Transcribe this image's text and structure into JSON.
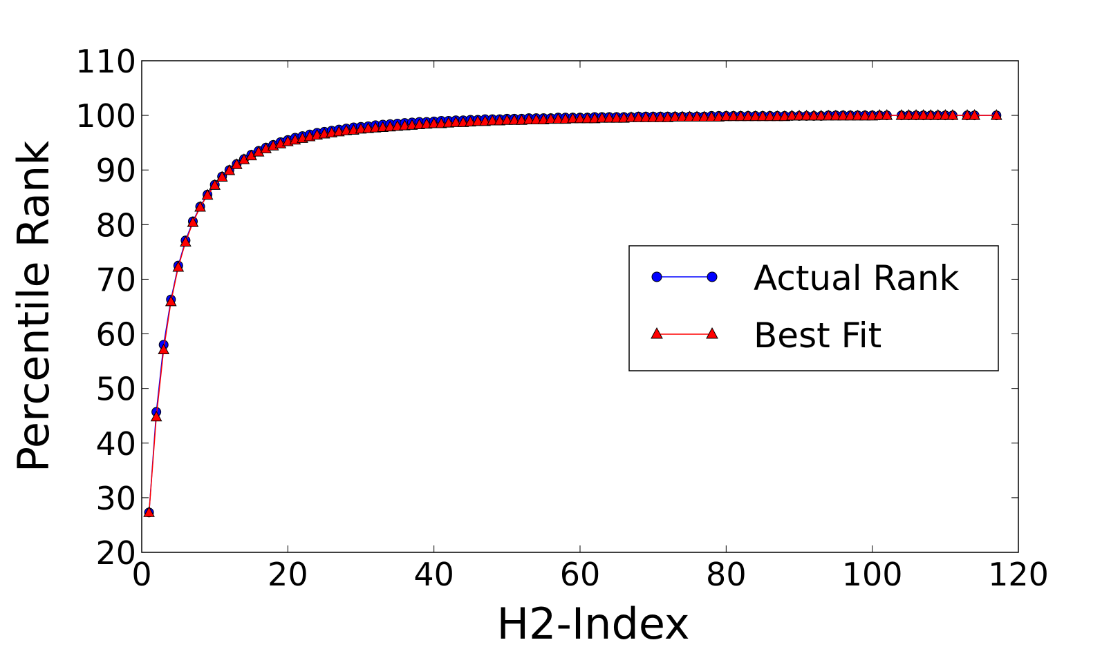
{
  "chart_data": {
    "type": "line",
    "title": "",
    "xlabel": "H2-Index",
    "ylabel": "Percentile Rank",
    "xlim": [
      0,
      120
    ],
    "ylim": [
      20,
      110
    ],
    "xticks": [
      "0",
      "20",
      "40",
      "60",
      "80",
      "100",
      "120"
    ],
    "yticks": [
      "20",
      "30",
      "40",
      "50",
      "60",
      "70",
      "80",
      "90",
      "100",
      "110"
    ],
    "grid": false,
    "legend_position": "center-right",
    "series": [
      {
        "name": "Actual Rank",
        "color": "#0000ff",
        "marker": "circle",
        "x": [
          1,
          2,
          3,
          4,
          5,
          6,
          7,
          8,
          9,
          10,
          11,
          12,
          13,
          14,
          15,
          16,
          17,
          18,
          19,
          20,
          21,
          22,
          23,
          24,
          25,
          26,
          27,
          28,
          29,
          30,
          31,
          32,
          33,
          34,
          35,
          36,
          37,
          38,
          39,
          40,
          41,
          42,
          43,
          44,
          45,
          46,
          47,
          48,
          49,
          50,
          51,
          52,
          53,
          54,
          55,
          56,
          57,
          58,
          59,
          60,
          61,
          62,
          63,
          64,
          65,
          66,
          67,
          68,
          69,
          70,
          71,
          72,
          73,
          74,
          75,
          76,
          77,
          78,
          79,
          80,
          81,
          82,
          83,
          84,
          85,
          86,
          87,
          88,
          89,
          90,
          91,
          92,
          93,
          94,
          95,
          96,
          97,
          98,
          99,
          100,
          101,
          102,
          104,
          105,
          106,
          107,
          108,
          109,
          110,
          111,
          113,
          114,
          117
        ],
        "y": [
          27.3,
          45.7,
          58.0,
          66.3,
          72.5,
          77.1,
          80.6,
          83.3,
          85.5,
          87.3,
          88.8,
          90.0,
          91.1,
          92.0,
          92.8,
          93.5,
          94.1,
          94.6,
          95.1,
          95.5,
          95.9,
          96.2,
          96.5,
          96.8,
          97.0,
          97.2,
          97.4,
          97.6,
          97.8,
          97.9,
          98.0,
          98.2,
          98.3,
          98.4,
          98.5,
          98.6,
          98.7,
          98.8,
          98.8,
          98.9,
          99.0,
          99.0,
          99.1,
          99.1,
          99.2,
          99.2,
          99.3,
          99.3,
          99.3,
          99.4,
          99.4,
          99.4,
          99.5,
          99.5,
          99.5,
          99.5,
          99.6,
          99.6,
          99.6,
          99.6,
          99.6,
          99.7,
          99.7,
          99.7,
          99.7,
          99.7,
          99.7,
          99.8,
          99.8,
          99.8,
          99.8,
          99.8,
          99.8,
          99.8,
          99.8,
          99.8,
          99.8,
          99.9,
          99.9,
          99.9,
          99.9,
          99.9,
          99.9,
          99.9,
          99.9,
          99.9,
          99.9,
          99.9,
          99.9,
          99.9,
          99.9,
          99.9,
          99.9,
          100.0,
          100.0,
          100.0,
          100.0,
          100.0,
          100.0,
          100.0,
          100.0,
          100.0,
          100.0,
          100.0,
          100.0,
          100.0,
          100.0,
          100.0,
          100.0,
          100.0,
          100.0,
          100.0,
          100.0
        ]
      },
      {
        "name": "Best Fit",
        "color": "#ff0000",
        "marker": "triangle",
        "x": [
          1,
          2,
          3,
          4,
          5,
          6,
          7,
          8,
          9,
          10,
          11,
          12,
          13,
          14,
          15,
          16,
          17,
          18,
          19,
          20,
          21,
          22,
          23,
          24,
          25,
          26,
          27,
          28,
          29,
          30,
          31,
          32,
          33,
          34,
          35,
          36,
          37,
          38,
          39,
          40,
          41,
          42,
          43,
          44,
          45,
          46,
          47,
          48,
          49,
          50,
          51,
          52,
          53,
          54,
          55,
          56,
          57,
          58,
          59,
          60,
          61,
          62,
          63,
          64,
          65,
          66,
          67,
          68,
          69,
          70,
          71,
          72,
          73,
          74,
          75,
          76,
          77,
          78,
          79,
          80,
          81,
          82,
          83,
          84,
          85,
          86,
          87,
          88,
          89,
          90,
          91,
          92,
          93,
          94,
          95,
          96,
          97,
          98,
          99,
          100,
          101,
          102,
          104,
          105,
          106,
          107,
          108,
          109,
          110,
          111,
          113,
          114,
          117
        ],
        "y": [
          27.3,
          44.8,
          57.1,
          65.9,
          72.2,
          76.8,
          80.4,
          83.2,
          85.4,
          87.2,
          88.7,
          89.9,
          91.0,
          91.9,
          92.6,
          93.3,
          93.9,
          94.4,
          94.8,
          95.2,
          95.5,
          95.8,
          96.1,
          96.4,
          96.6,
          96.8,
          97.0,
          97.2,
          97.3,
          97.5,
          97.6,
          97.7,
          97.8,
          97.9,
          98.0,
          98.1,
          98.2,
          98.3,
          98.4,
          98.5,
          98.5,
          98.6,
          98.7,
          98.7,
          98.8,
          98.9,
          98.9,
          99.0,
          99.0,
          99.1,
          99.1,
          99.1,
          99.2,
          99.2,
          99.2,
          99.3,
          99.3,
          99.3,
          99.4,
          99.4,
          99.4,
          99.4,
          99.5,
          99.5,
          99.5,
          99.5,
          99.6,
          99.6,
          99.6,
          99.6,
          99.6,
          99.6,
          99.7,
          99.7,
          99.7,
          99.7,
          99.7,
          99.7,
          99.7,
          99.8,
          99.8,
          99.8,
          99.8,
          99.8,
          99.8,
          99.8,
          99.8,
          99.8,
          99.9,
          99.9,
          99.9,
          99.9,
          99.9,
          99.9,
          99.9,
          99.9,
          99.9,
          99.9,
          99.9,
          99.9,
          100.0,
          100.0,
          100.0,
          100.0,
          100.0,
          100.0,
          100.0,
          100.0,
          100.0,
          100.0,
          100.0,
          100.0,
          100.0
        ]
      }
    ]
  }
}
